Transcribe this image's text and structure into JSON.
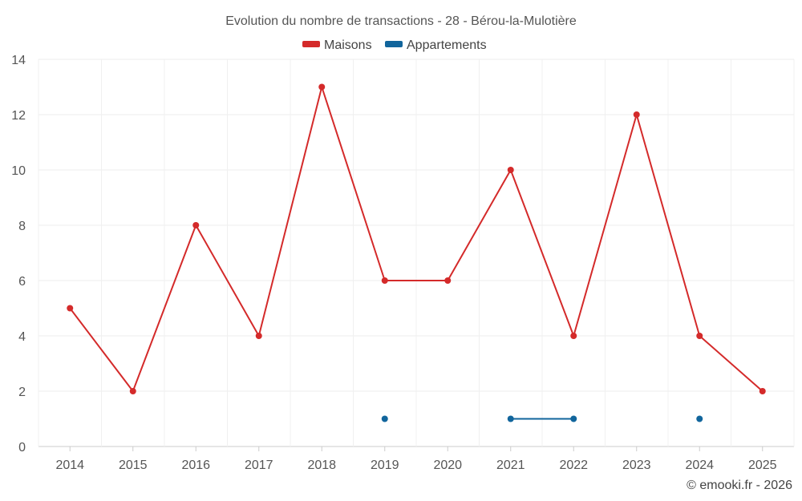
{
  "chart_data": {
    "type": "line",
    "title": "Evolution du nombre de transactions - 28 - Bérou-la-Mulotière",
    "x": [
      "2014",
      "2015",
      "2016",
      "2017",
      "2018",
      "2019",
      "2020",
      "2021",
      "2022",
      "2023",
      "2024",
      "2025"
    ],
    "series": [
      {
        "name": "Maisons",
        "color": "#d42a2a",
        "values": [
          5,
          2,
          8,
          4,
          13,
          6,
          6,
          10,
          4,
          12,
          4,
          2
        ]
      },
      {
        "name": "Appartements",
        "color": "#11659c",
        "values": [
          null,
          null,
          null,
          null,
          null,
          1,
          null,
          1,
          1,
          null,
          1,
          null
        ]
      }
    ],
    "ylim": [
      0,
      14
    ],
    "yticks": [
      0,
      2,
      4,
      6,
      8,
      10,
      12,
      14
    ],
    "xlabel": "",
    "ylabel": "",
    "grid": true,
    "legend": "top-center"
  },
  "credit": "© emooki.fr - 2026"
}
